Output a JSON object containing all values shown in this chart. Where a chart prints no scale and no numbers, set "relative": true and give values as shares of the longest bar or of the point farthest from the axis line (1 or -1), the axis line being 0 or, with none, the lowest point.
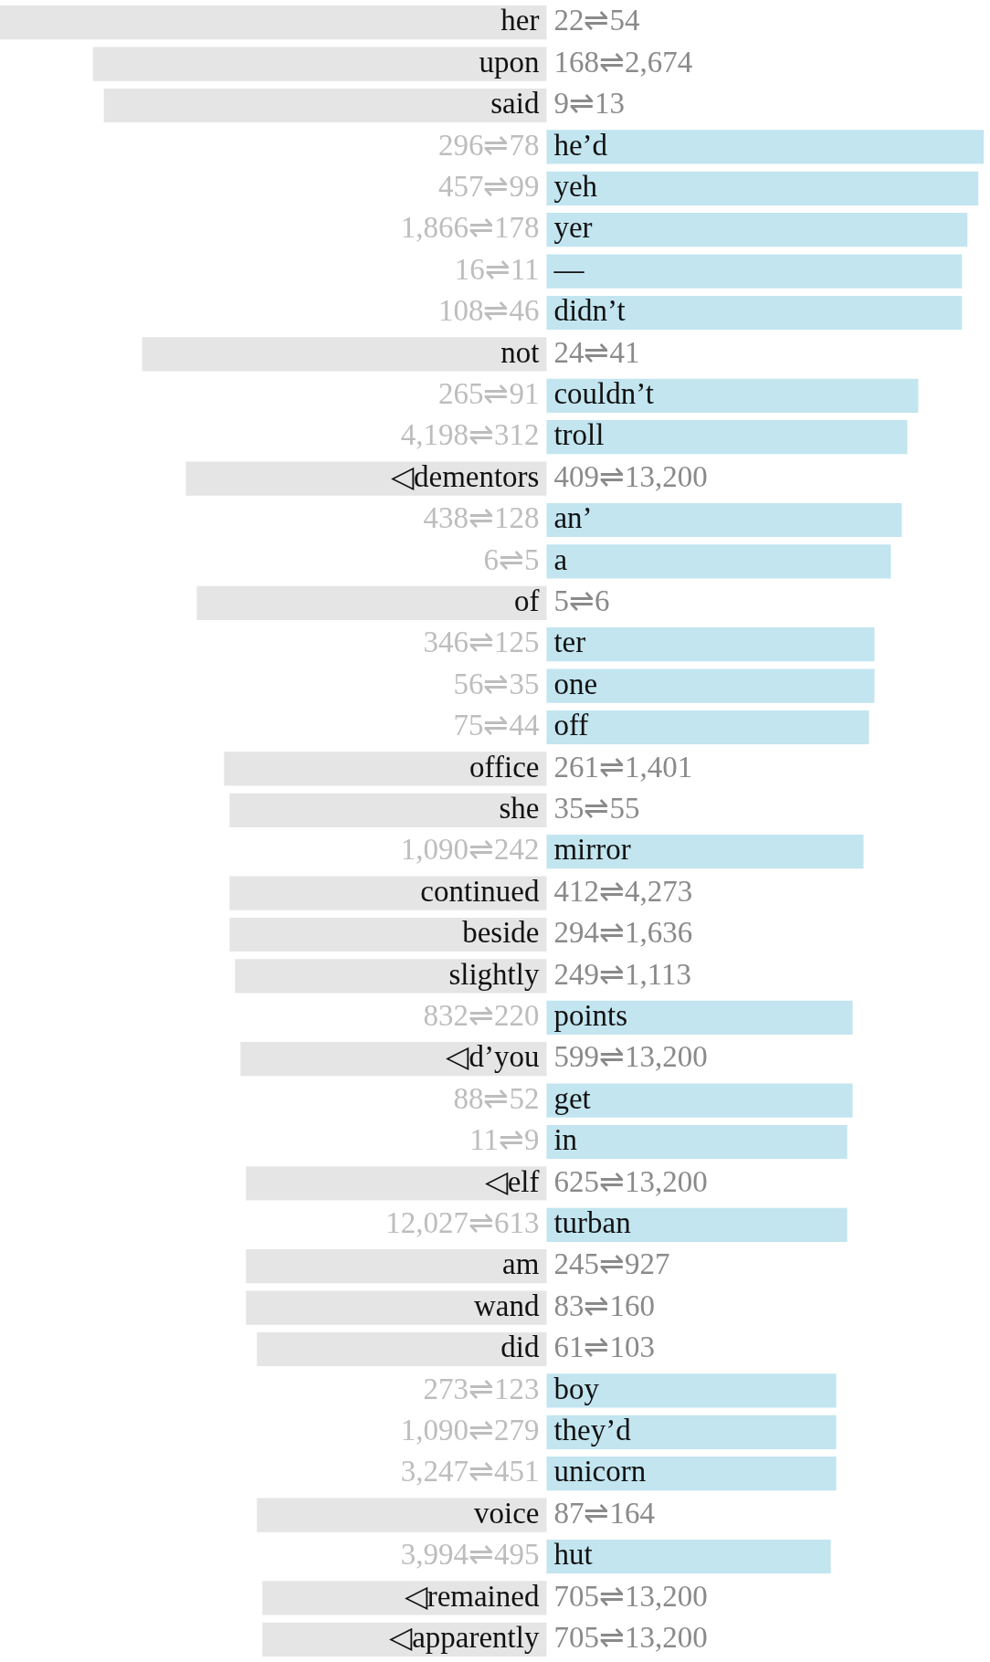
{
  "chart_data": {
    "type": "bar",
    "orientation": "horizontal",
    "relative": true,
    "categories": [
      "her",
      "upon",
      "said",
      "he’d",
      "yeh",
      "yer",
      "—",
      "didn’t",
      "not",
      "couldn’t",
      "troll",
      "◁dementors",
      "an’",
      "a",
      "of",
      "ter",
      "one",
      "off",
      "office",
      "she",
      "mirror",
      "continued",
      "beside",
      "slightly",
      "points",
      "◁d’you",
      "get",
      "in",
      "◁elf",
      "turban",
      "am",
      "wand",
      "did",
      "boy",
      "they’d",
      "unicorn",
      "voice",
      "hut",
      "◁remained",
      "◁apparently"
    ],
    "values": [
      -1,
      -0.83,
      -0.81,
      0.8,
      0.79,
      0.77,
      0.76,
      0.76,
      -0.74,
      0.68,
      0.66,
      -0.66,
      0.65,
      0.63,
      -0.64,
      0.6,
      0.6,
      0.59,
      -0.59,
      -0.58,
      0.58,
      -0.58,
      -0.58,
      -0.57,
      0.56,
      -0.56,
      0.56,
      0.55,
      -0.55,
      0.55,
      -0.55,
      -0.55,
      -0.53,
      0.53,
      0.53,
      0.53,
      -0.53,
      0.52,
      -0.52,
      -0.52
    ],
    "colors": [
      "#e5e5e5",
      "#e5e5e5",
      "#e5e5e5",
      "#c2e5f0",
      "#c2e5f0",
      "#c2e5f0",
      "#c2e5f0",
      "#c2e5f0",
      "#e5e5e5",
      "#c2e5f0",
      "#c2e5f0",
      "#e5e5e5",
      "#c2e5f0",
      "#c2e5f0",
      "#e5e5e5",
      "#c2e5f0",
      "#c2e5f0",
      "#c2e5f0",
      "#e5e5e5",
      "#e5e5e5",
      "#c2e5f0",
      "#e5e5e5",
      "#e5e5e5",
      "#e5e5e5",
      "#c2e5f0",
      "#e5e5e5",
      "#c2e5f0",
      "#c2e5f0",
      "#e5e5e5",
      "#c2e5f0",
      "#e5e5e5",
      "#e5e5e5",
      "#e5e5e5",
      "#c2e5f0",
      "#c2e5f0",
      "#c2e5f0",
      "#e5e5e5",
      "#c2e5f0",
      "#e5e5e5",
      "#e5e5e5"
    ],
    "annotations": [
      "22⇌54",
      "168⇌2,674",
      "9⇌13",
      "296⇌78",
      "457⇌99",
      "1,866⇌178",
      "16⇌11",
      "108⇌46",
      "24⇌41",
      "265⇌91",
      "4,198⇌312",
      "409⇌13,200",
      "438⇌128",
      "6⇌5",
      "5⇌6",
      "346⇌125",
      "56⇌35",
      "75⇌44",
      "261⇌1,401",
      "35⇌55",
      "1,090⇌242",
      "412⇌4,273",
      "294⇌1,636",
      "249⇌1,113",
      "832⇌220",
      "599⇌13,200",
      "88⇌52",
      "11⇌9",
      "625⇌13,200",
      "12,027⇌613",
      "245⇌927",
      "83⇌160",
      "61⇌103",
      "273⇌123",
      "1,090⇌279",
      "3,247⇌451",
      "87⇌164",
      "3,994⇌495",
      "705⇌13,200",
      "705⇌13,200"
    ]
  }
}
